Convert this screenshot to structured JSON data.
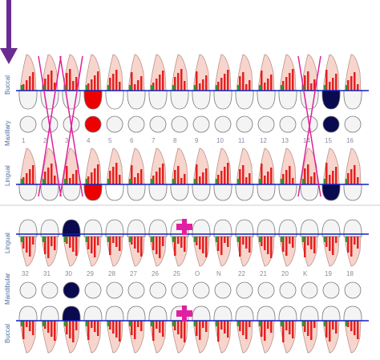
{
  "upper": {
    "labels": {
      "buccal": "Buccal",
      "arch": "Maxillary",
      "lingual": "Lingual"
    },
    "numbers": [
      "1",
      "2",
      "3",
      "4",
      "5",
      "6",
      "7",
      "8",
      "9",
      "10",
      "11",
      "12",
      "13",
      "14",
      "15",
      "16"
    ]
  },
  "lower": {
    "labels": {
      "lingual": "Lingual",
      "arch": "Mandibular",
      "buccal": "Buccal"
    },
    "numbers": [
      "32",
      "31",
      "30",
      "29",
      "28",
      "27",
      "26",
      "25",
      "O",
      "N",
      "22",
      "21",
      "20",
      "K",
      "19",
      "18"
    ]
  }
}
